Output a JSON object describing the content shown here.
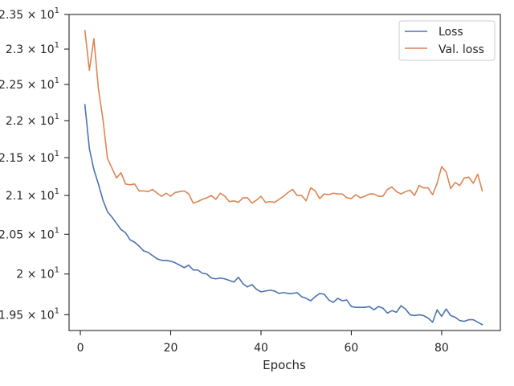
{
  "chart_data": {
    "type": "line",
    "title": "",
    "xlabel": "Epochs",
    "ylabel": "",
    "xlim": [
      -2.5,
      93
    ],
    "ylim": [
      19.31,
      23.5
    ],
    "yscale": "log",
    "grid": false,
    "legend_position": "top-right",
    "x_ticks": [
      0,
      20,
      40,
      60,
      80
    ],
    "y_ticks": [
      {
        "value": 19.5,
        "mantissa": "1.95",
        "base": "10",
        "exp": "1"
      },
      {
        "value": 20.0,
        "mantissa": "2",
        "base": "10",
        "exp": "1"
      },
      {
        "value": 20.5,
        "mantissa": "2.05",
        "base": "10",
        "exp": "1"
      },
      {
        "value": 21.0,
        "mantissa": "2.1",
        "base": "10",
        "exp": "1"
      },
      {
        "value": 21.5,
        "mantissa": "2.15",
        "base": "10",
        "exp": "1"
      },
      {
        "value": 22.0,
        "mantissa": "2.2",
        "base": "10",
        "exp": "1"
      },
      {
        "value": 22.5,
        "mantissa": "2.25",
        "base": "10",
        "exp": "1"
      },
      {
        "value": 23.0,
        "mantissa": "2.3",
        "base": "10",
        "exp": "1"
      },
      {
        "value": 23.5,
        "mantissa": "2.35",
        "base": "10",
        "exp": "1"
      }
    ],
    "x": [
      1,
      2,
      3,
      4,
      5,
      6,
      7,
      8,
      9,
      10,
      11,
      12,
      13,
      14,
      15,
      16,
      17,
      18,
      19,
      20,
      21,
      22,
      23,
      24,
      25,
      26,
      27,
      28,
      29,
      30,
      31,
      32,
      33,
      34,
      35,
      36,
      37,
      38,
      39,
      40,
      41,
      42,
      43,
      44,
      45,
      46,
      47,
      48,
      49,
      50,
      51,
      52,
      53,
      54,
      55,
      56,
      57,
      58,
      59,
      60,
      61,
      62,
      63,
      64,
      65,
      66,
      67,
      68,
      69,
      70,
      71,
      72,
      73,
      74,
      75,
      76,
      77,
      78,
      79,
      80,
      81,
      82,
      83,
      84,
      85,
      86,
      87,
      88,
      89
    ],
    "series": [
      {
        "name": "Loss",
        "color": "#4c72b0",
        "values": [
          22.22,
          21.62,
          21.34,
          21.15,
          20.94,
          20.79,
          20.72,
          20.64,
          20.56,
          20.52,
          20.43,
          20.4,
          20.35,
          20.29,
          20.27,
          20.23,
          20.19,
          20.17,
          20.17,
          20.16,
          20.14,
          20.11,
          20.08,
          20.11,
          20.05,
          20.05,
          20.01,
          20.0,
          19.95,
          19.94,
          19.95,
          19.94,
          19.92,
          19.9,
          19.96,
          19.88,
          19.84,
          19.87,
          19.81,
          19.78,
          19.79,
          19.8,
          19.79,
          19.76,
          19.77,
          19.76,
          19.76,
          19.77,
          19.72,
          19.7,
          19.67,
          19.72,
          19.76,
          19.75,
          19.68,
          19.65,
          19.7,
          19.67,
          19.68,
          19.6,
          19.59,
          19.59,
          19.59,
          19.6,
          19.56,
          19.6,
          19.58,
          19.52,
          19.55,
          19.53,
          19.61,
          19.57,
          19.5,
          19.49,
          19.5,
          19.49,
          19.46,
          19.41,
          19.56,
          19.48,
          19.57,
          19.49,
          19.47,
          19.43,
          19.42,
          19.44,
          19.44,
          19.41,
          19.38
        ]
      },
      {
        "name": "Val. loss",
        "color": "#dd8452",
        "values": [
          23.27,
          22.7,
          23.15,
          22.44,
          22.02,
          21.49,
          21.36,
          21.23,
          21.3,
          21.15,
          21.14,
          21.15,
          21.06,
          21.06,
          21.05,
          21.08,
          21.03,
          20.99,
          21.03,
          20.99,
          21.04,
          21.05,
          21.06,
          21.02,
          20.9,
          20.92,
          20.95,
          20.97,
          21.0,
          20.95,
          21.03,
          20.99,
          20.92,
          20.93,
          20.91,
          20.97,
          20.97,
          20.9,
          20.94,
          20.99,
          20.91,
          20.92,
          20.91,
          20.95,
          20.99,
          21.04,
          21.08,
          21.0,
          21.0,
          20.93,
          21.1,
          21.06,
          20.96,
          21.02,
          21.01,
          21.03,
          21.02,
          21.02,
          20.97,
          20.96,
          21.01,
          20.97,
          20.99,
          21.02,
          21.02,
          20.99,
          20.99,
          21.08,
          21.11,
          21.05,
          21.02,
          21.05,
          21.07,
          21.0,
          21.13,
          21.1,
          21.1,
          21.01,
          21.16,
          21.38,
          21.31,
          21.09,
          21.17,
          21.13,
          21.23,
          21.24,
          21.16,
          21.28,
          21.06
        ]
      }
    ]
  }
}
